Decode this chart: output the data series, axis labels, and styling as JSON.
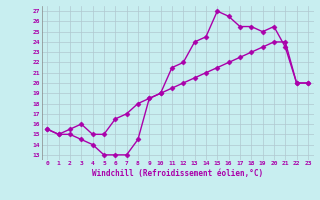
{
  "xlabel": "Windchill (Refroidissement éolien,°C)",
  "bg_color": "#c8eef0",
  "line_color": "#aa00aa",
  "grid_color": "#b0c8d0",
  "xlim": [
    -0.5,
    23.5
  ],
  "ylim": [
    12.5,
    27.5
  ],
  "xticks": [
    0,
    1,
    2,
    3,
    4,
    5,
    6,
    7,
    8,
    9,
    10,
    11,
    12,
    13,
    14,
    15,
    16,
    17,
    18,
    19,
    20,
    21,
    22,
    23
  ],
  "yticks": [
    13,
    14,
    15,
    16,
    17,
    18,
    19,
    20,
    21,
    22,
    23,
    24,
    25,
    26,
    27
  ],
  "line1_x": [
    0,
    1,
    2,
    3,
    4,
    5,
    6,
    7,
    8,
    9,
    10,
    11,
    12,
    13,
    14,
    15,
    16,
    17,
    18,
    19,
    20,
    21,
    22,
    23
  ],
  "line1_y": [
    15.5,
    15.0,
    15.0,
    14.5,
    14.0,
    13.0,
    13.0,
    13.0,
    14.5,
    18.5,
    19.0,
    21.5,
    22.0,
    24.0,
    24.5,
    27.0,
    26.5,
    25.5,
    25.5,
    25.0,
    25.5,
    23.5,
    20.0,
    20.0
  ],
  "line2_x": [
    0,
    1,
    2,
    3,
    4,
    5,
    6,
    7,
    8,
    9,
    10,
    11,
    12,
    13,
    14,
    15,
    16,
    17,
    18,
    19,
    20,
    21,
    22,
    23
  ],
  "line2_y": [
    15.5,
    15.0,
    15.5,
    16.0,
    15.0,
    15.0,
    16.5,
    17.0,
    18.0,
    18.5,
    19.0,
    19.5,
    20.0,
    20.5,
    21.0,
    21.5,
    22.0,
    22.5,
    23.0,
    23.5,
    24.0,
    24.0,
    20.0,
    20.0
  ],
  "markersize": 2.5,
  "linewidth": 1.0
}
